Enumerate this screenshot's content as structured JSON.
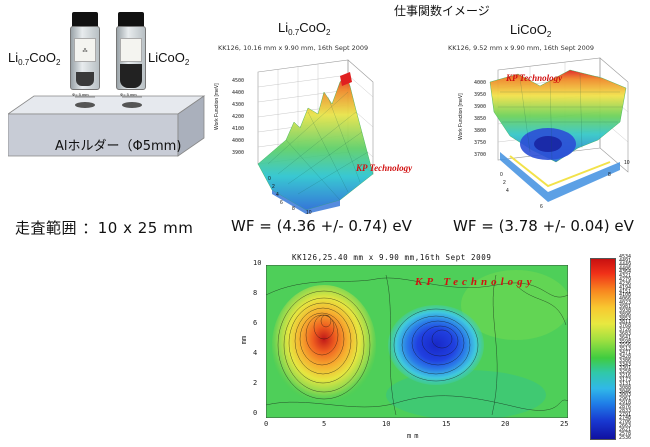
{
  "header": {
    "title": "仕事関数イメージ"
  },
  "samples": {
    "left_vial": {
      "label_main": "Li",
      "label_sub": "0.7",
      "label_tail": "CoO",
      "label_sub2": "2"
    },
    "right_vial": {
      "label_main": "LiCoO",
      "label_sub": "2"
    },
    "holder_label": "Alホルダー（Φ5mm)",
    "dim_left": "Φ= 5 mm",
    "dim_right": "Φ= 5 mm"
  },
  "scan_range": "走査範囲 ：10 x 25 mm",
  "plots": {
    "left": {
      "title_main": "Li",
      "title_sub": "0.7",
      "title_tail": "CoO",
      "title_sub2": "2",
      "meta": "KK126, 10.16 mm x 9.90 mm, 16th Sept 2009",
      "zlabel": "Work Function [meV]",
      "z_ticks": [
        "4500",
        "4400",
        "4300",
        "4200",
        "4100",
        "4000",
        "3900"
      ],
      "axis_ticks": [
        "0",
        "2",
        "4",
        "6",
        "8",
        "10"
      ],
      "watermark": "KP Technology",
      "wf": "WF = (4.36 +/- 0.74) eV"
    },
    "right": {
      "title_main": "LiCoO",
      "title_sub": "2",
      "meta": "KK126, 9.52 mm x 9.90 mm, 16th Sept 2009",
      "zlabel": "Work Function [meV]",
      "z_ticks": [
        "4000",
        "3950",
        "3900",
        "3850",
        "3800",
        "3750",
        "3700"
      ],
      "axis_ticks": [
        "0",
        "2",
        "4",
        "6",
        "8",
        "10"
      ],
      "watermark": "KP Technology",
      "wf": "WF = (3.78 +/- 0.04) eV"
    },
    "contour": {
      "meta": "KK126,25.40 mm x 9.90 mm,16th Sept 2009",
      "watermark": "KP Technology",
      "xlabel": "mm",
      "ylabel": "mm",
      "x_ticks": [
        "0",
        "5",
        "10",
        "15",
        "20",
        "25"
      ],
      "y_ticks": [
        "0",
        "2",
        "4",
        "6",
        "8",
        "10"
      ],
      "colorbar_ticks": [
        "4534",
        "4491",
        "4449",
        "4406",
        "4364",
        "4321",
        "4279",
        "4236",
        "4194",
        "4151",
        "4108",
        "4066",
        "4023",
        "3981",
        "3938",
        "3896",
        "3853",
        "3811",
        "3768",
        "3726",
        "3683",
        "3641",
        "3598",
        "3556",
        "3513",
        "3471",
        "3428",
        "3386",
        "3343",
        "3301",
        "3258",
        "3216",
        "3173",
        "3131",
        "3088",
        "3046",
        "3003",
        "2961",
        "2918",
        "2876",
        "2833",
        "2791",
        "2748",
        "2706",
        "2663",
        "2621",
        "2578",
        "2536"
      ]
    }
  },
  "colors": {
    "watermark": "#d21010"
  }
}
